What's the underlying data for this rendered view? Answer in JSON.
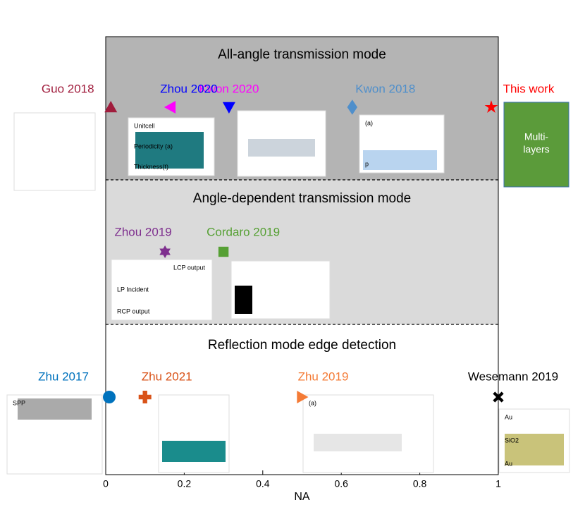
{
  "chart_data": {
    "type": "scatter",
    "xlabel": "NA",
    "xlim": [
      0,
      1
    ],
    "xticks": [
      0,
      0.2,
      0.4,
      0.6,
      0.8,
      1
    ],
    "bands": [
      {
        "title": "All-angle transmission mode",
        "color": "#b4b4b4",
        "points": [
          {
            "name": "Guo 2018",
            "color": "#a01c3c",
            "marker": "triangle-up",
            "x": 0.013
          },
          {
            "name": "Kwon 2020",
            "color": "#ff00ff",
            "marker": "triangle-left",
            "x": 0.165
          },
          {
            "name": "Zhou 2020",
            "color": "#0000ff",
            "marker": "triangle-down",
            "x": 0.314
          },
          {
            "name": "Kwon 2018",
            "color": "#4f8fcb",
            "marker": "diamond",
            "x": 0.628
          },
          {
            "name": "This work",
            "color": "#ff0000",
            "marker": "star",
            "x": 0.982
          }
        ]
      },
      {
        "title": "Angle-dependent transmission mode",
        "color": "#dadada",
        "points": [
          {
            "name": "Zhou 2019",
            "color": "#7e2f8e",
            "marker": "hexagram",
            "x": 0.151
          },
          {
            "name": "Cordaro 2019",
            "color": "#56a034",
            "marker": "square",
            "x": 0.3
          }
        ]
      },
      {
        "title": "Reflection mode edge detection",
        "color": "#ffffff",
        "points": [
          {
            "name": "Zhu 2017",
            "color": "#0072bd",
            "marker": "circle",
            "x": 0.009
          },
          {
            "name": "Zhu 2021",
            "color": "#d95319",
            "marker": "plus",
            "x": 0.1
          },
          {
            "name": "Zhu 2019",
            "color": "#f47b36",
            "marker": "triangle-right",
            "x": 0.5
          },
          {
            "name": "Wesemann 2019",
            "color": "#000000",
            "marker": "x",
            "x": 1
          }
        ]
      }
    ],
    "insets": [
      {
        "texts": []
      },
      {
        "texts": [
          "Unitcell",
          "Periodicity (a)",
          "Thickness(t)"
        ]
      },
      {
        "texts": []
      },
      {
        "texts": [
          "(a)",
          "p"
        ]
      },
      {
        "texts": [
          "Multi-",
          "layers"
        ]
      },
      {
        "texts": [
          "LCP output",
          "LP Incident",
          "RCP output"
        ]
      },
      {
        "texts": []
      },
      {
        "texts": [
          "SPP"
        ]
      },
      {
        "texts": []
      },
      {
        "texts": [
          "(a)"
        ]
      },
      {
        "texts": [
          "Au",
          "SiO2",
          "Au"
        ]
      }
    ]
  }
}
